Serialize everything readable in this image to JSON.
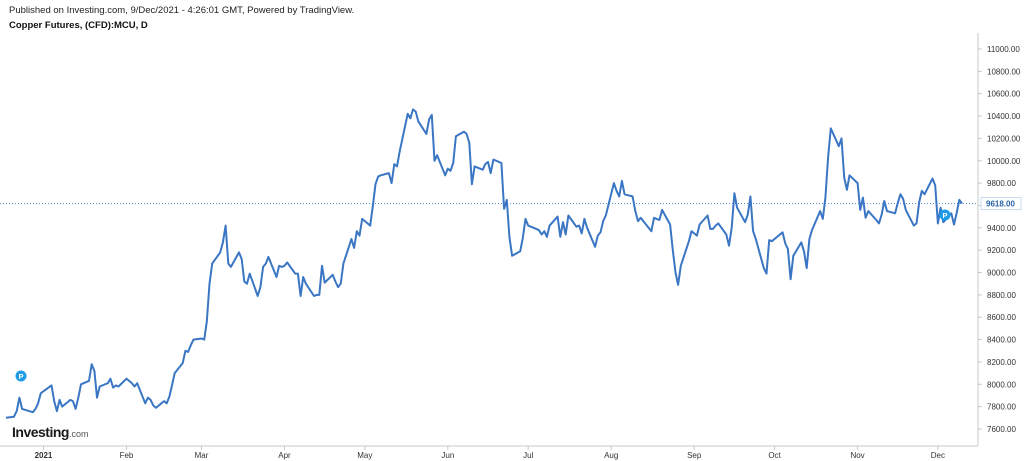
{
  "header": {
    "published": "Published on Investing.com, 9/Dec/2021 - 4:26:01 GMT, Powered by TradingView.",
    "instrument": "Copper Futures, (CFD):MCU, D"
  },
  "logo": {
    "main": "Investing",
    "suffix": ".com"
  },
  "colors": {
    "line": "#3a76c4",
    "grid": "#e6e6e6",
    "last_price_line": "#5c8fd6",
    "marker": "#1e9be9"
  },
  "chart_data": {
    "type": "line",
    "title": "Copper Futures, (CFD):MCU, D",
    "xlabel": "",
    "ylabel": "",
    "ylim": [
      7500,
      11100
    ],
    "y_ticks": [
      "11000.00",
      "10800.00",
      "10600.00",
      "10400.00",
      "10200.00",
      "10000.00",
      "9800.00",
      "9600.00",
      "9400.00",
      "9200.00",
      "9000.00",
      "8800.00",
      "8600.00",
      "8400.00",
      "8200.00",
      "8000.00",
      "7800.00",
      "7600.00"
    ],
    "x_ticks": [
      "2021",
      "Feb",
      "Mar",
      "Apr",
      "May",
      "Jun",
      "Jul",
      "Aug",
      "Sep",
      "Oct",
      "Nov",
      "Dec"
    ],
    "last_price": "9618.00",
    "grid": false,
    "markers": [
      "P",
      "P"
    ],
    "series": [
      {
        "points": [
          [
            "2020-12-18",
            7700
          ],
          [
            "2020-12-21",
            7710
          ],
          [
            "2020-12-22",
            7760
          ],
          [
            "2020-12-23",
            7880
          ],
          [
            "2020-12-24",
            7780
          ],
          [
            "2020-12-28",
            7750
          ],
          [
            "2020-12-29",
            7780
          ],
          [
            "2020-12-30",
            7830
          ],
          [
            "2020-12-31",
            7920
          ],
          [
            "2021-01-04",
            7990
          ],
          [
            "2021-01-05",
            7850
          ],
          [
            "2021-01-06",
            7760
          ],
          [
            "2021-01-07",
            7860
          ],
          [
            "2021-01-08",
            7800
          ],
          [
            "2021-01-11",
            7860
          ],
          [
            "2021-01-12",
            7850
          ],
          [
            "2021-01-13",
            7780
          ],
          [
            "2021-01-14",
            7880
          ],
          [
            "2021-01-15",
            8000
          ],
          [
            "2021-01-18",
            8030
          ],
          [
            "2021-01-19",
            8180
          ],
          [
            "2021-01-20",
            8120
          ],
          [
            "2021-01-21",
            7880
          ],
          [
            "2021-01-22",
            7980
          ],
          [
            "2021-01-25",
            8010
          ],
          [
            "2021-01-26",
            8050
          ],
          [
            "2021-01-27",
            7970
          ],
          [
            "2021-01-28",
            7990
          ],
          [
            "2021-01-29",
            7980
          ],
          [
            "2021-02-01",
            8050
          ],
          [
            "2021-02-02",
            8030
          ],
          [
            "2021-02-03",
            8010
          ],
          [
            "2021-02-04",
            7980
          ],
          [
            "2021-02-05",
            8010
          ],
          [
            "2021-02-08",
            7830
          ],
          [
            "2021-02-09",
            7880
          ],
          [
            "2021-02-10",
            7860
          ],
          [
            "2021-02-11",
            7810
          ],
          [
            "2021-02-12",
            7790
          ],
          [
            "2021-02-15",
            7850
          ],
          [
            "2021-02-16",
            7830
          ],
          [
            "2021-02-17",
            7890
          ],
          [
            "2021-02-18",
            7990
          ],
          [
            "2021-02-19",
            8100
          ],
          [
            "2021-02-22",
            8190
          ],
          [
            "2021-02-23",
            8300
          ],
          [
            "2021-02-24",
            8290
          ],
          [
            "2021-02-25",
            8350
          ],
          [
            "2021-02-26",
            8400
          ],
          [
            "2021-03-01",
            8410
          ],
          [
            "2021-03-02",
            8400
          ],
          [
            "2021-03-03",
            8560
          ],
          [
            "2021-03-04",
            8900
          ],
          [
            "2021-03-05",
            9080
          ],
          [
            "2021-03-08",
            9180
          ],
          [
            "2021-03-09",
            9270
          ],
          [
            "2021-03-10",
            9420
          ],
          [
            "2021-03-11",
            9080
          ],
          [
            "2021-03-12",
            9050
          ],
          [
            "2021-03-15",
            9180
          ],
          [
            "2021-03-16",
            9120
          ],
          [
            "2021-03-17",
            8920
          ],
          [
            "2021-03-18",
            8900
          ],
          [
            "2021-03-19",
            8990
          ],
          [
            "2021-03-22",
            8790
          ],
          [
            "2021-03-23",
            8870
          ],
          [
            "2021-03-24",
            9050
          ],
          [
            "2021-03-25",
            9080
          ],
          [
            "2021-03-26",
            9140
          ],
          [
            "2021-03-29",
            8960
          ],
          [
            "2021-03-30",
            9060
          ],
          [
            "2021-03-31",
            9050
          ],
          [
            "2021-04-01",
            9060
          ],
          [
            "2021-04-02",
            9090
          ],
          [
            "2021-04-05",
            8990
          ],
          [
            "2021-04-06",
            8990
          ],
          [
            "2021-04-07",
            8790
          ],
          [
            "2021-04-08",
            8960
          ],
          [
            "2021-04-09",
            8900
          ],
          [
            "2021-04-12",
            8790
          ],
          [
            "2021-04-13",
            8800
          ],
          [
            "2021-04-14",
            8800
          ],
          [
            "2021-04-15",
            9060
          ],
          [
            "2021-04-16",
            8910
          ],
          [
            "2021-04-19",
            8980
          ],
          [
            "2021-04-20",
            8920
          ],
          [
            "2021-04-21",
            8870
          ],
          [
            "2021-04-22",
            8900
          ],
          [
            "2021-04-23",
            9080
          ],
          [
            "2021-04-26",
            9300
          ],
          [
            "2021-04-27",
            9220
          ],
          [
            "2021-04-28",
            9370
          ],
          [
            "2021-04-29",
            9330
          ],
          [
            "2021-04-30",
            9480
          ],
          [
            "2021-05-03",
            9420
          ],
          [
            "2021-05-04",
            9600
          ],
          [
            "2021-05-05",
            9790
          ],
          [
            "2021-05-06",
            9860
          ],
          [
            "2021-05-07",
            9870
          ],
          [
            "2021-05-10",
            9890
          ],
          [
            "2021-05-11",
            9800
          ],
          [
            "2021-05-12",
            9970
          ],
          [
            "2021-05-13",
            9950
          ],
          [
            "2021-05-14",
            10080
          ],
          [
            "2021-05-17",
            10420
          ],
          [
            "2021-05-18",
            10380
          ],
          [
            "2021-05-19",
            10460
          ],
          [
            "2021-05-20",
            10440
          ],
          [
            "2021-05-21",
            10350
          ],
          [
            "2021-05-24",
            10240
          ],
          [
            "2021-05-25",
            10370
          ],
          [
            "2021-05-26",
            10410
          ],
          [
            "2021-05-27",
            10000
          ],
          [
            "2021-05-28",
            10050
          ],
          [
            "2021-05-31",
            9870
          ],
          [
            "2021-06-01",
            9930
          ],
          [
            "2021-06-02",
            9910
          ],
          [
            "2021-06-03",
            9980
          ],
          [
            "2021-06-04",
            10220
          ],
          [
            "2021-06-07",
            10260
          ],
          [
            "2021-06-08",
            10240
          ],
          [
            "2021-06-09",
            10160
          ],
          [
            "2021-06-10",
            9790
          ],
          [
            "2021-06-11",
            9950
          ],
          [
            "2021-06-14",
            9920
          ],
          [
            "2021-06-15",
            9970
          ],
          [
            "2021-06-16",
            9990
          ],
          [
            "2021-06-17",
            9890
          ],
          [
            "2021-06-18",
            10010
          ],
          [
            "2021-06-21",
            9980
          ],
          [
            "2021-06-22",
            9570
          ],
          [
            "2021-06-23",
            9650
          ],
          [
            "2021-06-24",
            9320
          ],
          [
            "2021-06-25",
            9150
          ],
          [
            "2021-06-28",
            9190
          ],
          [
            "2021-06-29",
            9310
          ],
          [
            "2021-06-30",
            9480
          ],
          [
            "2021-07-01",
            9420
          ],
          [
            "2021-07-02",
            9410
          ],
          [
            "2021-07-05",
            9380
          ],
          [
            "2021-07-06",
            9340
          ],
          [
            "2021-07-07",
            9370
          ],
          [
            "2021-07-08",
            9320
          ],
          [
            "2021-07-09",
            9420
          ],
          [
            "2021-07-12",
            9500
          ],
          [
            "2021-07-13",
            9320
          ],
          [
            "2021-07-14",
            9450
          ],
          [
            "2021-07-15",
            9340
          ],
          [
            "2021-07-16",
            9510
          ],
          [
            "2021-07-19",
            9410
          ],
          [
            "2021-07-20",
            9420
          ],
          [
            "2021-07-21",
            9350
          ],
          [
            "2021-07-22",
            9480
          ],
          [
            "2021-07-23",
            9400
          ],
          [
            "2021-07-26",
            9230
          ],
          [
            "2021-07-27",
            9330
          ],
          [
            "2021-07-28",
            9360
          ],
          [
            "2021-07-29",
            9460
          ],
          [
            "2021-07-30",
            9510
          ],
          [
            "2021-08-02",
            9800
          ],
          [
            "2021-08-03",
            9730
          ],
          [
            "2021-08-04",
            9680
          ],
          [
            "2021-08-05",
            9820
          ],
          [
            "2021-08-06",
            9700
          ],
          [
            "2021-08-09",
            9680
          ],
          [
            "2021-08-10",
            9550
          ],
          [
            "2021-08-11",
            9460
          ],
          [
            "2021-08-12",
            9490
          ],
          [
            "2021-08-13",
            9460
          ],
          [
            "2021-08-16",
            9370
          ],
          [
            "2021-08-17",
            9490
          ],
          [
            "2021-08-18",
            9480
          ],
          [
            "2021-08-19",
            9470
          ],
          [
            "2021-08-20",
            9560
          ],
          [
            "2021-08-23",
            9430
          ],
          [
            "2021-08-24",
            9200
          ],
          [
            "2021-08-25",
            9000
          ],
          [
            "2021-08-26",
            8890
          ],
          [
            "2021-08-27",
            9060
          ],
          [
            "2021-08-30",
            9280
          ],
          [
            "2021-08-31",
            9370
          ],
          [
            "2021-09-01",
            9350
          ],
          [
            "2021-09-02",
            9330
          ],
          [
            "2021-09-03",
            9430
          ],
          [
            "2021-09-06",
            9510
          ],
          [
            "2021-09-07",
            9390
          ],
          [
            "2021-09-08",
            9390
          ],
          [
            "2021-09-09",
            9420
          ],
          [
            "2021-09-10",
            9440
          ],
          [
            "2021-09-13",
            9340
          ],
          [
            "2021-09-14",
            9240
          ],
          [
            "2021-09-15",
            9400
          ],
          [
            "2021-09-16",
            9710
          ],
          [
            "2021-09-17",
            9580
          ],
          [
            "2021-09-20",
            9450
          ],
          [
            "2021-09-21",
            9520
          ],
          [
            "2021-09-22",
            9680
          ],
          [
            "2021-09-23",
            9370
          ],
          [
            "2021-09-24",
            9300
          ],
          [
            "2021-09-27",
            9040
          ],
          [
            "2021-09-28",
            8990
          ],
          [
            "2021-09-29",
            9290
          ],
          [
            "2021-09-30",
            9280
          ],
          [
            "2021-10-01",
            9300
          ],
          [
            "2021-10-04",
            9360
          ],
          [
            "2021-10-05",
            9260
          ],
          [
            "2021-10-06",
            9210
          ],
          [
            "2021-10-07",
            8940
          ],
          [
            "2021-10-08",
            9150
          ],
          [
            "2021-10-11",
            9270
          ],
          [
            "2021-10-12",
            9190
          ],
          [
            "2021-10-13",
            9040
          ],
          [
            "2021-10-14",
            9300
          ],
          [
            "2021-10-15",
            9380
          ],
          [
            "2021-10-18",
            9550
          ],
          [
            "2021-10-19",
            9480
          ],
          [
            "2021-10-20",
            9670
          ],
          [
            "2021-10-21",
            10030
          ],
          [
            "2021-10-22",
            10290
          ],
          [
            "2021-10-25",
            10130
          ],
          [
            "2021-10-26",
            10200
          ],
          [
            "2021-10-27",
            9850
          ],
          [
            "2021-10-28",
            9740
          ],
          [
            "2021-10-29",
            9870
          ],
          [
            "2021-11-01",
            9800
          ],
          [
            "2021-11-02",
            9560
          ],
          [
            "2021-11-03",
            9670
          ],
          [
            "2021-11-04",
            9490
          ],
          [
            "2021-11-05",
            9550
          ],
          [
            "2021-11-08",
            9470
          ],
          [
            "2021-11-09",
            9440
          ],
          [
            "2021-11-10",
            9520
          ],
          [
            "2021-11-11",
            9640
          ],
          [
            "2021-11-12",
            9550
          ],
          [
            "2021-11-15",
            9530
          ],
          [
            "2021-11-16",
            9620
          ],
          [
            "2021-11-17",
            9700
          ],
          [
            "2021-11-18",
            9660
          ],
          [
            "2021-11-19",
            9560
          ],
          [
            "2021-11-22",
            9420
          ],
          [
            "2021-11-23",
            9440
          ],
          [
            "2021-11-24",
            9630
          ],
          [
            "2021-11-25",
            9730
          ],
          [
            "2021-11-26",
            9700
          ],
          [
            "2021-11-29",
            9840
          ],
          [
            "2021-11-30",
            9780
          ],
          [
            "2021-12-01",
            9440
          ],
          [
            "2021-12-02",
            9580
          ],
          [
            "2021-12-03",
            9450
          ],
          [
            "2021-12-06",
            9530
          ],
          [
            "2021-12-07",
            9430
          ],
          [
            "2021-12-08",
            9530
          ],
          [
            "2021-12-09",
            9650
          ],
          [
            "2021-12-10",
            9618
          ]
        ]
      }
    ]
  }
}
